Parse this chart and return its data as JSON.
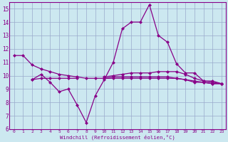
{
  "color": "#880088",
  "bg_color": "#cce8f0",
  "grid_color": "#99aacc",
  "xlabel": "Windchill (Refroidissement éolien,°C)",
  "ylim": [
    6,
    15.5
  ],
  "xlim": [
    -0.5,
    23.5
  ],
  "yticks": [
    6,
    7,
    8,
    9,
    10,
    11,
    12,
    13,
    14,
    15
  ],
  "xticks": [
    0,
    1,
    2,
    3,
    4,
    5,
    6,
    7,
    8,
    9,
    10,
    11,
    12,
    13,
    14,
    15,
    16,
    17,
    18,
    19,
    20,
    21,
    22,
    23
  ],
  "lines": [
    [
      11.5,
      11.5,
      10.8,
      10.5,
      10.3,
      10.1,
      10.0,
      9.9,
      9.8,
      9.8,
      9.8,
      9.8,
      9.8,
      9.8,
      9.8,
      9.8,
      9.8,
      9.8,
      9.8,
      9.7,
      9.6,
      9.5,
      9.4,
      9.4
    ],
    [
      null,
      null,
      9.7,
      10.1,
      9.5,
      8.8,
      9.0,
      7.8,
      6.5,
      8.5,
      9.7,
      11.0,
      13.5,
      14.0,
      14.0,
      15.3,
      13.0,
      12.5,
      10.9,
      10.2,
      10.2,
      9.6,
      9.6,
      9.4
    ],
    [
      null,
      null,
      9.7,
      9.8,
      9.8,
      9.8,
      9.8,
      9.8,
      null,
      null,
      9.9,
      10.0,
      10.1,
      10.2,
      10.2,
      10.2,
      10.3,
      10.3,
      10.3,
      10.1,
      9.8,
      9.6,
      9.5,
      9.4
    ],
    [
      null,
      null,
      null,
      null,
      null,
      null,
      null,
      null,
      null,
      null,
      9.8,
      9.9,
      9.9,
      9.9,
      9.9,
      9.9,
      9.9,
      9.9,
      9.8,
      9.7,
      9.5,
      9.5,
      9.4,
      9.4
    ]
  ]
}
